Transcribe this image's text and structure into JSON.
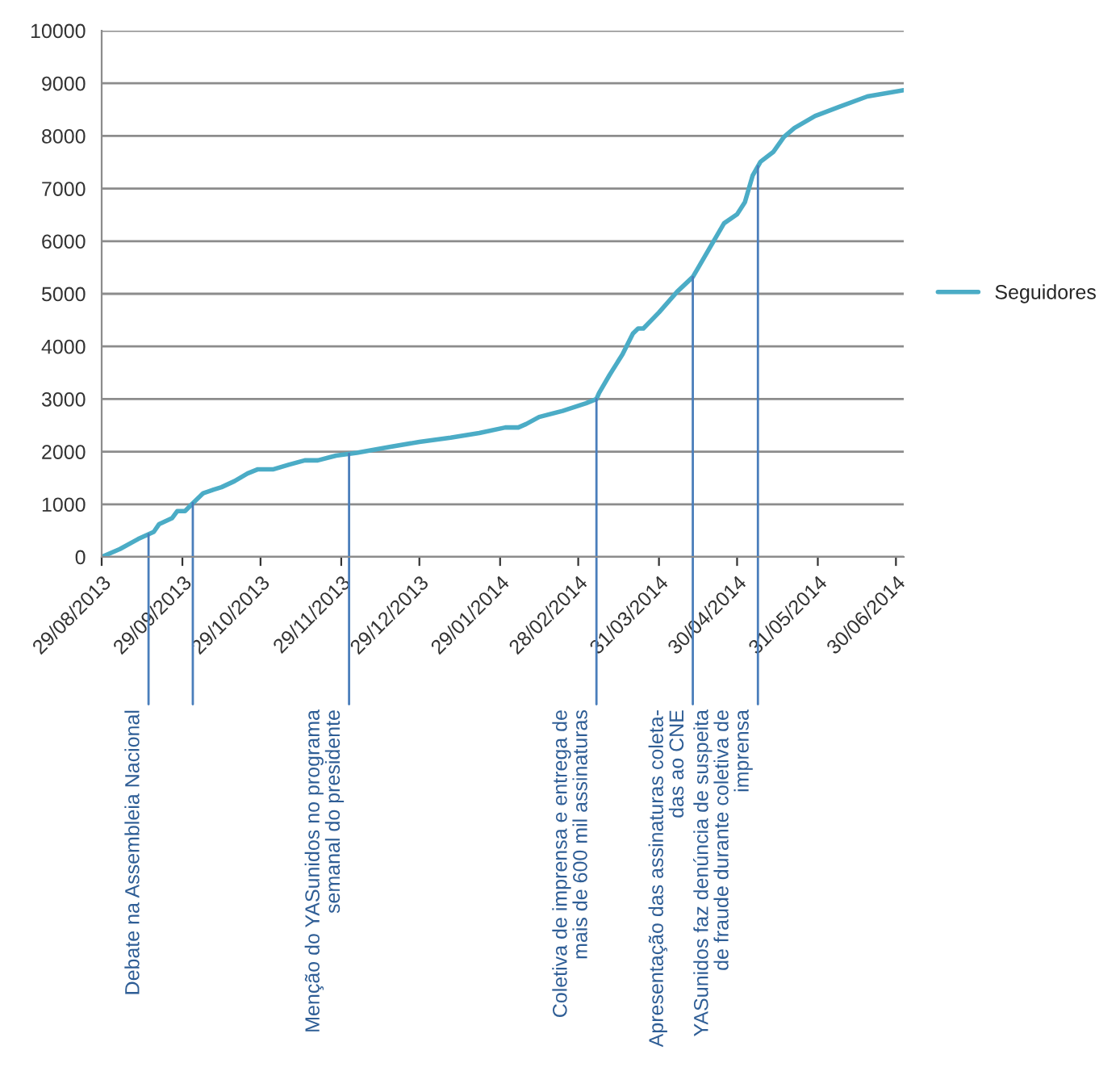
{
  "chart_data": {
    "type": "line",
    "x": [
      "2013-08-29",
      "2013-09-05",
      "2013-09-12",
      "2013-09-18",
      "2013-09-20",
      "2013-09-25",
      "2013-09-27",
      "2013-09-30",
      "2013-10-03",
      "2013-10-07",
      "2013-10-11",
      "2013-10-14",
      "2013-10-19",
      "2013-10-24",
      "2013-10-28",
      "2013-11-03",
      "2013-11-09",
      "2013-11-15",
      "2013-11-20",
      "2013-11-27",
      "2013-12-05",
      "2013-12-18",
      "2013-12-29",
      "2014-01-10",
      "2014-01-21",
      "2014-01-31",
      "2014-02-05",
      "2014-02-08",
      "2014-02-13",
      "2014-02-22",
      "2014-03-03",
      "2014-03-07",
      "2014-03-08",
      "2014-03-12",
      "2014-03-17",
      "2014-03-21",
      "2014-03-23",
      "2014-03-25",
      "2014-03-31",
      "2014-04-07",
      "2014-04-13",
      "2014-04-15",
      "2014-04-19",
      "2014-04-25",
      "2014-04-30",
      "2014-05-03",
      "2014-05-06",
      "2014-05-09",
      "2014-05-14",
      "2014-05-18",
      "2014-05-22",
      "2014-05-30",
      "2014-06-08",
      "2014-06-19",
      "2014-07-03"
    ],
    "series": [
      {
        "name": "Seguidores",
        "color": "#4bacc6",
        "values": [
          0,
          150,
          340,
          475,
          620,
          735,
          870,
          870,
          1020,
          1210,
          1280,
          1325,
          1440,
          1585,
          1665,
          1665,
          1755,
          1835,
          1835,
          1925,
          1980,
          2095,
          2185,
          2265,
          2355,
          2460,
          2460,
          2525,
          2660,
          2775,
          2920,
          3000,
          3115,
          3455,
          3850,
          4245,
          4340,
          4340,
          4645,
          5040,
          5320,
          5490,
          5830,
          6340,
          6510,
          6740,
          7250,
          7510,
          7700,
          7980,
          8150,
          8380,
          8550,
          8750,
          8870
        ]
      }
    ],
    "xlim": [
      "2013-08-29",
      "2014-07-03"
    ],
    "xticks": [
      {
        "value": "2013-08-29",
        "label": "29/08/2013"
      },
      {
        "value": "2013-09-29",
        "label": "29/09/2013"
      },
      {
        "value": "2013-10-29",
        "label": "29/10/2013"
      },
      {
        "value": "2013-11-29",
        "label": "29/11/2013"
      },
      {
        "value": "2013-12-29",
        "label": "29/12/2013"
      },
      {
        "value": "2014-01-29",
        "label": "29/01/2014"
      },
      {
        "value": "2014-02-28",
        "label": "28/02/2014"
      },
      {
        "value": "2014-03-31",
        "label": "31/03/2014"
      },
      {
        "value": "2014-04-30",
        "label": "30/04/2014"
      },
      {
        "value": "2014-05-31",
        "label": "31/05/2014"
      },
      {
        "value": "2014-06-30",
        "label": "30/06/2014"
      }
    ],
    "ylim": [
      0,
      10000
    ],
    "yticks": [
      0,
      1000,
      2000,
      3000,
      4000,
      5000,
      6000,
      7000,
      8000,
      9000,
      10000
    ],
    "grid": "y",
    "legend": "right",
    "marker": "none",
    "line_style": "solid",
    "ref_lines": [
      {
        "axis": "x",
        "value": "2013-09-16",
        "label": "Debate na Assembleia Nacional",
        "color": "#4a7ebb"
      },
      {
        "axis": "x",
        "value": "2013-10-03",
        "label": null,
        "color": "#4a7ebb"
      },
      {
        "axis": "x",
        "value": "2013-12-02",
        "label": "Menção do YASunidos no programa\nsemanal do presidente",
        "color": "#4a7ebb"
      },
      {
        "axis": "x",
        "value": "2014-03-07",
        "label": "Coletiva de imprensa e entrega de\nmais de 600 mil assinaturas",
        "color": "#4a7ebb"
      },
      {
        "axis": "x",
        "value": "2014-04-13",
        "label": "Apresentação das assinaturas coleta-\ndas ao CNE",
        "color": "#4a7ebb"
      },
      {
        "axis": "x",
        "value": "2014-05-08",
        "label": "YASunidos faz denúncia de suspeita\nde fraude durante coletiva de\nimprensa",
        "color": "#4a7ebb"
      }
    ]
  }
}
